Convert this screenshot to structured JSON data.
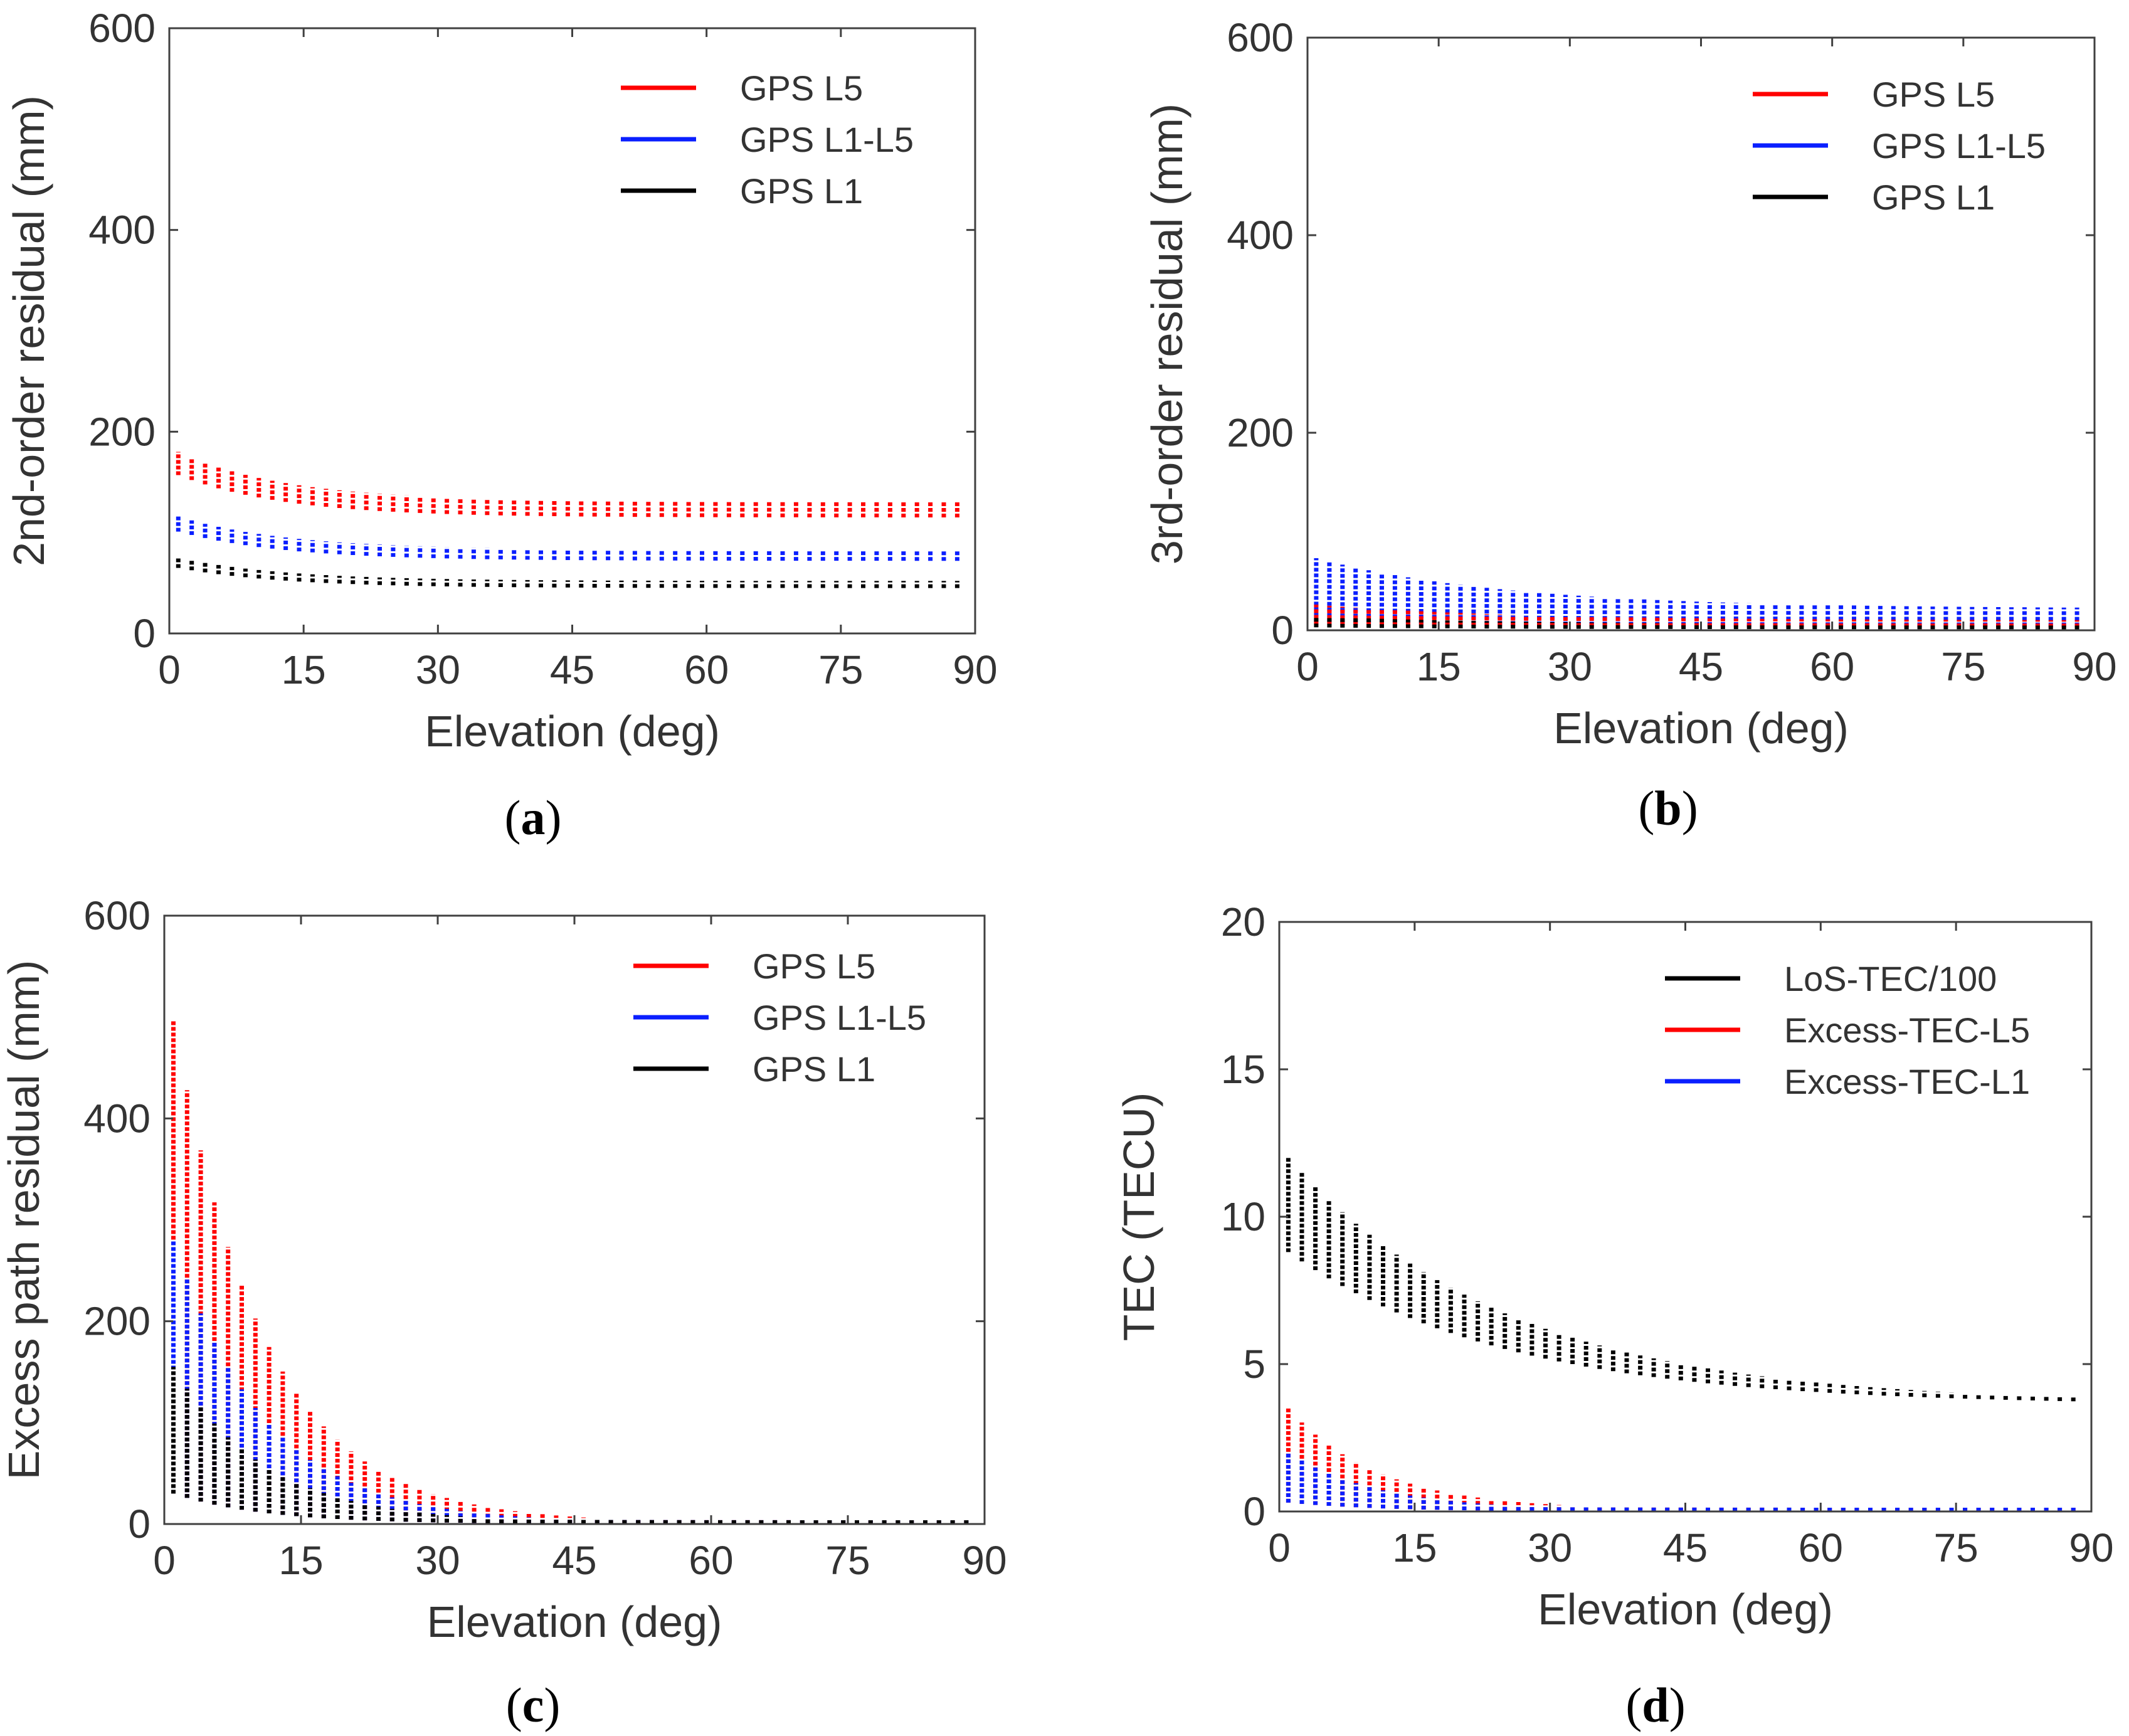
{
  "colors": {
    "red": "#ff0000",
    "blue": "#0a1fff",
    "black": "#000000",
    "axis": "#404040",
    "text": "#333333"
  },
  "chart_data": [
    {
      "id": "a",
      "type": "bar",
      "caption": "a",
      "xlabel": "Elevation (deg)",
      "ylabel": "2nd-order residual (mm)",
      "xlim": [
        0,
        90
      ],
      "ylim": [
        0,
        600
      ],
      "xticks": [
        "0",
        "15",
        "30",
        "45",
        "60",
        "75",
        "90"
      ],
      "yticks": [
        "0",
        "200",
        "400",
        "600"
      ],
      "legend_position": "top-right",
      "legend": [
        "GPS L5",
        "GPS L1-L5",
        "GPS L1"
      ],
      "x_step": 1.5,
      "series": [
        {
          "name": "GPS L5",
          "color": "red",
          "range_at_0": [
            157,
            180
          ],
          "range_at_90": [
            115,
            131
          ],
          "decay_deg": 12
        },
        {
          "name": "GPS L1-L5",
          "color": "blue",
          "range_at_0": [
            101,
            116
          ],
          "range_at_90": [
            72,
            83
          ],
          "decay_deg": 12
        },
        {
          "name": "GPS L1",
          "color": "black",
          "range_at_0": [
            65,
            75
          ],
          "range_at_90": [
            45,
            52
          ],
          "decay_deg": 12
        }
      ]
    },
    {
      "id": "b",
      "type": "bar",
      "caption": "b",
      "xlabel": "Elevation (deg)",
      "ylabel": "3rd-order residual (mm)",
      "xlim": [
        0,
        90
      ],
      "ylim": [
        0,
        600
      ],
      "xticks": [
        "0",
        "15",
        "30",
        "45",
        "60",
        "75",
        "90"
      ],
      "yticks": [
        "0",
        "200",
        "400",
        "600"
      ],
      "legend_position": "top-right",
      "legend": [
        "GPS L5",
        "GPS L1-L5",
        "GPS L1"
      ],
      "x_step": 1.5,
      "series": [
        {
          "name": "GPS L1-L5",
          "color": "blue",
          "range_at_0": [
            8,
            73
          ],
          "range_at_90": [
            4,
            22
          ],
          "decay_deg": 22
        },
        {
          "name": "GPS L5",
          "color": "red",
          "range_at_0": [
            6,
            26
          ],
          "range_at_90": [
            3,
            10
          ],
          "decay_deg": 22
        },
        {
          "name": "GPS L1",
          "color": "black",
          "range_at_0": [
            3,
            14
          ],
          "range_at_90": [
            1,
            6
          ],
          "decay_deg": 22
        }
      ]
    },
    {
      "id": "c",
      "type": "bar",
      "caption": "c",
      "xlabel": "Elevation (deg)",
      "ylabel": "Excess path residual (mm)",
      "xlim": [
        0,
        90
      ],
      "ylim": [
        0,
        600
      ],
      "xticks": [
        "0",
        "15",
        "30",
        "45",
        "60",
        "75",
        "90"
      ],
      "yticks": [
        "0",
        "200",
        "400",
        "600"
      ],
      "legend_position": "top-right",
      "legend": [
        "GPS L5",
        "GPS L1-L5",
        "GPS L1"
      ],
      "x_step": 1.5,
      "series": [
        {
          "name": "GPS L5",
          "color": "red",
          "range_at_0": [
            30,
            497
          ],
          "range_at_90": [
            0,
            1
          ],
          "decay_deg": 10
        },
        {
          "name": "GPS L1-L5",
          "color": "blue",
          "range_at_0": [
            30,
            280
          ],
          "range_at_90": [
            0,
            1
          ],
          "decay_deg": 10
        },
        {
          "name": "GPS L1",
          "color": "black",
          "range_at_0": [
            30,
            155
          ],
          "range_at_90": [
            0,
            1
          ],
          "decay_deg": 10
        }
      ]
    },
    {
      "id": "d",
      "type": "bar",
      "caption": "d",
      "xlabel": "Elevation (deg)",
      "ylabel": "TEC (TECU)",
      "xlim": [
        0,
        90
      ],
      "ylim": [
        0,
        20
      ],
      "xticks": [
        "0",
        "15",
        "30",
        "45",
        "60",
        "75",
        "90"
      ],
      "yticks": [
        "0",
        "5",
        "10",
        "15",
        "20"
      ],
      "legend_position": "top-right",
      "legend": [
        "LoS-TEC/100",
        "Excess-TEC-L5",
        "Excess-TEC-L1"
      ],
      "x_step": 1.5,
      "series": [
        {
          "name": "LoS-TEC/100",
          "color": "black",
          "range_at_0": [
            8.8,
            12.0
          ],
          "range_at_90": [
            3.6,
            3.65
          ],
          "decay_deg": 24
        },
        {
          "name": "Excess-TEC-L5",
          "color": "red",
          "range_at_0": [
            0.3,
            3.5
          ],
          "range_at_90": [
            0,
            0.05
          ],
          "decay_deg": 10
        },
        {
          "name": "Excess-TEC-L1",
          "color": "blue",
          "range_at_0": [
            0.3,
            2.0
          ],
          "range_at_90": [
            0,
            0.03
          ],
          "decay_deg": 10
        }
      ]
    }
  ]
}
